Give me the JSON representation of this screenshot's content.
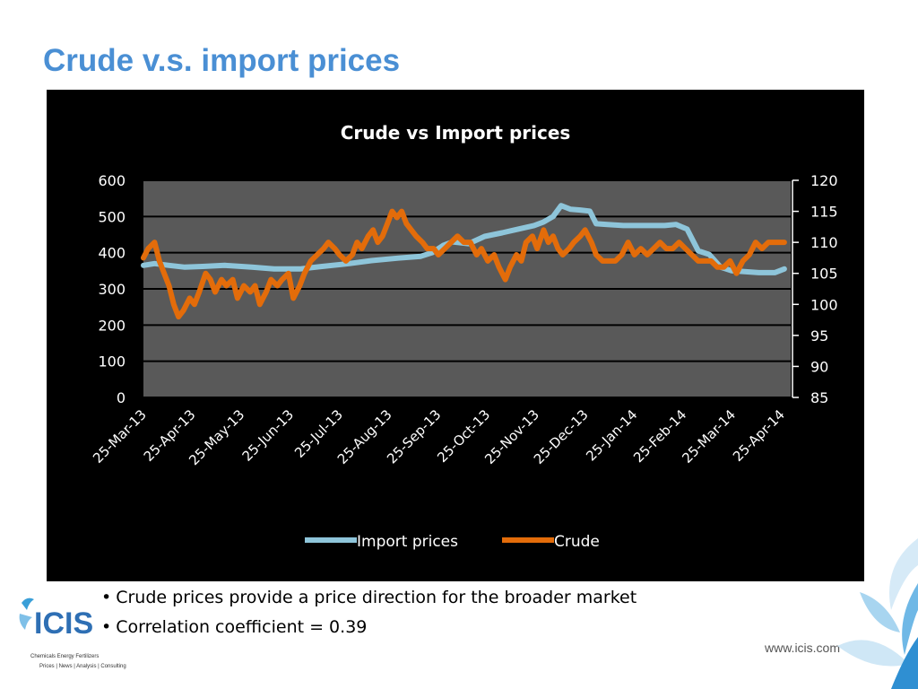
{
  "slide": {
    "title": "Crude v.s. import prices",
    "bullets": [
      "Crude prices provide a price direction for the broader market",
      "Correlation coefficient = 0.39"
    ],
    "url": "www.icis.com",
    "logo": {
      "name": "ICIS",
      "tagline_1": "Chemicals  Energy  Fertilizers",
      "tagline_2": "Prices | News | Analysis | Consulting"
    }
  },
  "colors": {
    "title": "#4a8fd4",
    "chart_bg": "#000000",
    "plot_bg": "#595959",
    "gridline": "#000000",
    "text": "#ffffff",
    "import_series": "#8ec5da",
    "crude_series": "#e36c0a"
  },
  "chart_data": {
    "type": "line",
    "title": "Crude vs Import prices",
    "x_tick_labels": [
      "25-Mar-13",
      "25-Apr-13",
      "25-May-13",
      "25-Jun-13",
      "25-Jul-13",
      "25-Aug-13",
      "25-Sep-13",
      "25-Oct-13",
      "25-Nov-13",
      "25-Dec-13",
      "25-Jan-14",
      "25-Feb-14",
      "25-Mar-14",
      "25-Apr-14"
    ],
    "x_range": [
      "2013-03-25",
      "2014-05-05"
    ],
    "y_left": {
      "min": 0,
      "max": 600,
      "ticks": [
        0,
        100,
        200,
        300,
        400,
        500,
        600
      ]
    },
    "y_right": {
      "min": 85,
      "max": 120,
      "ticks": [
        85,
        90,
        95,
        100,
        105,
        110,
        115,
        120
      ]
    },
    "grid": true,
    "legend_position": "bottom",
    "series": [
      {
        "name": "Import prices",
        "axis": "left",
        "points": [
          [
            "2013-03-25",
            365
          ],
          [
            "2013-04-01",
            370
          ],
          [
            "2013-04-10",
            365
          ],
          [
            "2013-04-20",
            360
          ],
          [
            "2013-05-01",
            362
          ],
          [
            "2013-05-15",
            365
          ],
          [
            "2013-06-01",
            360
          ],
          [
            "2013-06-15",
            355
          ],
          [
            "2013-07-01",
            355
          ],
          [
            "2013-07-15",
            362
          ],
          [
            "2013-08-01",
            370
          ],
          [
            "2013-08-15",
            378
          ],
          [
            "2013-09-01",
            385
          ],
          [
            "2013-09-15",
            390
          ],
          [
            "2013-09-22",
            400
          ],
          [
            "2013-09-29",
            420
          ],
          [
            "2013-10-05",
            430
          ],
          [
            "2013-10-15",
            425
          ],
          [
            "2013-10-25",
            445
          ],
          [
            "2013-11-05",
            455
          ],
          [
            "2013-11-15",
            465
          ],
          [
            "2013-11-25",
            475
          ],
          [
            "2013-12-01",
            485
          ],
          [
            "2013-12-07",
            500
          ],
          [
            "2013-12-12",
            530
          ],
          [
            "2013-12-18",
            520
          ],
          [
            "2013-12-24",
            518
          ],
          [
            "2013-12-30",
            515
          ],
          [
            "2014-01-03",
            480
          ],
          [
            "2014-01-10",
            478
          ],
          [
            "2014-01-20",
            475
          ],
          [
            "2014-02-01",
            475
          ],
          [
            "2014-02-15",
            475
          ],
          [
            "2014-02-22",
            478
          ],
          [
            "2014-03-01",
            465
          ],
          [
            "2014-03-08",
            405
          ],
          [
            "2014-03-15",
            395
          ],
          [
            "2014-03-22",
            360
          ],
          [
            "2014-03-29",
            350
          ],
          [
            "2014-04-05",
            348
          ],
          [
            "2014-04-15",
            345
          ],
          [
            "2014-04-25",
            345
          ],
          [
            "2014-05-01",
            355
          ]
        ]
      },
      {
        "name": "Crude",
        "axis": "right",
        "points": [
          [
            "2013-03-25",
            107.5
          ],
          [
            "2013-03-28",
            109
          ],
          [
            "2013-04-01",
            110
          ],
          [
            "2013-04-04",
            107
          ],
          [
            "2013-04-07",
            105
          ],
          [
            "2013-04-10",
            103
          ],
          [
            "2013-04-13",
            100
          ],
          [
            "2013-04-16",
            98
          ],
          [
            "2013-04-19",
            99
          ],
          [
            "2013-04-23",
            101
          ],
          [
            "2013-04-26",
            100
          ],
          [
            "2013-04-29",
            102
          ],
          [
            "2013-05-03",
            105
          ],
          [
            "2013-05-06",
            104
          ],
          [
            "2013-05-09",
            102
          ],
          [
            "2013-05-13",
            104
          ],
          [
            "2013-05-16",
            103
          ],
          [
            "2013-05-20",
            104
          ],
          [
            "2013-05-23",
            101
          ],
          [
            "2013-05-27",
            103
          ],
          [
            "2013-05-31",
            102
          ],
          [
            "2013-06-03",
            103
          ],
          [
            "2013-06-06",
            100
          ],
          [
            "2013-06-10",
            102
          ],
          [
            "2013-06-13",
            104
          ],
          [
            "2013-06-17",
            103
          ],
          [
            "2013-06-20",
            104
          ],
          [
            "2013-06-24",
            105
          ],
          [
            "2013-06-27",
            101
          ],
          [
            "2013-07-01",
            103
          ],
          [
            "2013-07-04",
            105
          ],
          [
            "2013-07-08",
            107
          ],
          [
            "2013-07-12",
            108
          ],
          [
            "2013-07-16",
            109
          ],
          [
            "2013-07-19",
            110
          ],
          [
            "2013-07-23",
            109
          ],
          [
            "2013-07-26",
            108
          ],
          [
            "2013-07-30",
            107
          ],
          [
            "2013-08-03",
            108
          ],
          [
            "2013-08-06",
            110
          ],
          [
            "2013-08-09",
            109
          ],
          [
            "2013-08-13",
            111
          ],
          [
            "2013-08-16",
            112
          ],
          [
            "2013-08-19",
            110
          ],
          [
            "2013-08-22",
            111
          ],
          [
            "2013-08-25",
            113
          ],
          [
            "2013-08-28",
            115
          ],
          [
            "2013-08-31",
            114
          ],
          [
            "2013-09-03",
            115
          ],
          [
            "2013-09-06",
            113
          ],
          [
            "2013-09-09",
            112
          ],
          [
            "2013-09-12",
            111
          ],
          [
            "2013-09-16",
            110
          ],
          [
            "2013-09-19",
            109
          ],
          [
            "2013-09-23",
            109
          ],
          [
            "2013-09-26",
            108
          ],
          [
            "2013-09-30",
            109
          ],
          [
            "2013-10-04",
            110
          ],
          [
            "2013-10-08",
            111
          ],
          [
            "2013-10-12",
            110
          ],
          [
            "2013-10-16",
            110
          ],
          [
            "2013-10-20",
            108
          ],
          [
            "2013-10-23",
            109
          ],
          [
            "2013-10-27",
            107
          ],
          [
            "2013-10-31",
            108
          ],
          [
            "2013-11-03",
            106
          ],
          [
            "2013-11-07",
            104
          ],
          [
            "2013-11-10",
            106
          ],
          [
            "2013-11-14",
            108
          ],
          [
            "2013-11-17",
            107
          ],
          [
            "2013-11-20",
            110
          ],
          [
            "2013-11-24",
            111
          ],
          [
            "2013-11-27",
            109
          ],
          [
            "2013-12-01",
            112
          ],
          [
            "2013-12-04",
            110
          ],
          [
            "2013-12-07",
            111
          ],
          [
            "2013-12-10",
            109
          ],
          [
            "2013-12-13",
            108
          ],
          [
            "2013-12-17",
            109
          ],
          [
            "2013-12-20",
            110
          ],
          [
            "2013-12-24",
            111
          ],
          [
            "2013-12-27",
            112
          ],
          [
            "2013-12-31",
            110
          ],
          [
            "2014-01-03",
            108
          ],
          [
            "2014-01-07",
            107
          ],
          [
            "2014-01-11",
            107
          ],
          [
            "2014-01-15",
            107
          ],
          [
            "2014-01-19",
            108
          ],
          [
            "2014-01-23",
            110
          ],
          [
            "2014-01-27",
            108
          ],
          [
            "2014-01-31",
            109
          ],
          [
            "2014-02-04",
            108
          ],
          [
            "2014-02-08",
            109
          ],
          [
            "2014-02-12",
            110
          ],
          [
            "2014-02-16",
            109
          ],
          [
            "2014-02-20",
            109
          ],
          [
            "2014-02-24",
            110
          ],
          [
            "2014-02-28",
            109
          ],
          [
            "2014-03-04",
            108
          ],
          [
            "2014-03-08",
            107
          ],
          [
            "2014-03-12",
            107
          ],
          [
            "2014-03-16",
            107
          ],
          [
            "2014-03-20",
            106
          ],
          [
            "2014-03-24",
            106
          ],
          [
            "2014-03-28",
            107
          ],
          [
            "2014-04-01",
            105
          ],
          [
            "2014-04-05",
            107
          ],
          [
            "2014-04-09",
            108
          ],
          [
            "2014-04-13",
            110
          ],
          [
            "2014-04-17",
            109
          ],
          [
            "2014-04-21",
            110
          ],
          [
            "2014-04-25",
            110
          ],
          [
            "2014-05-01",
            110
          ]
        ]
      }
    ]
  }
}
